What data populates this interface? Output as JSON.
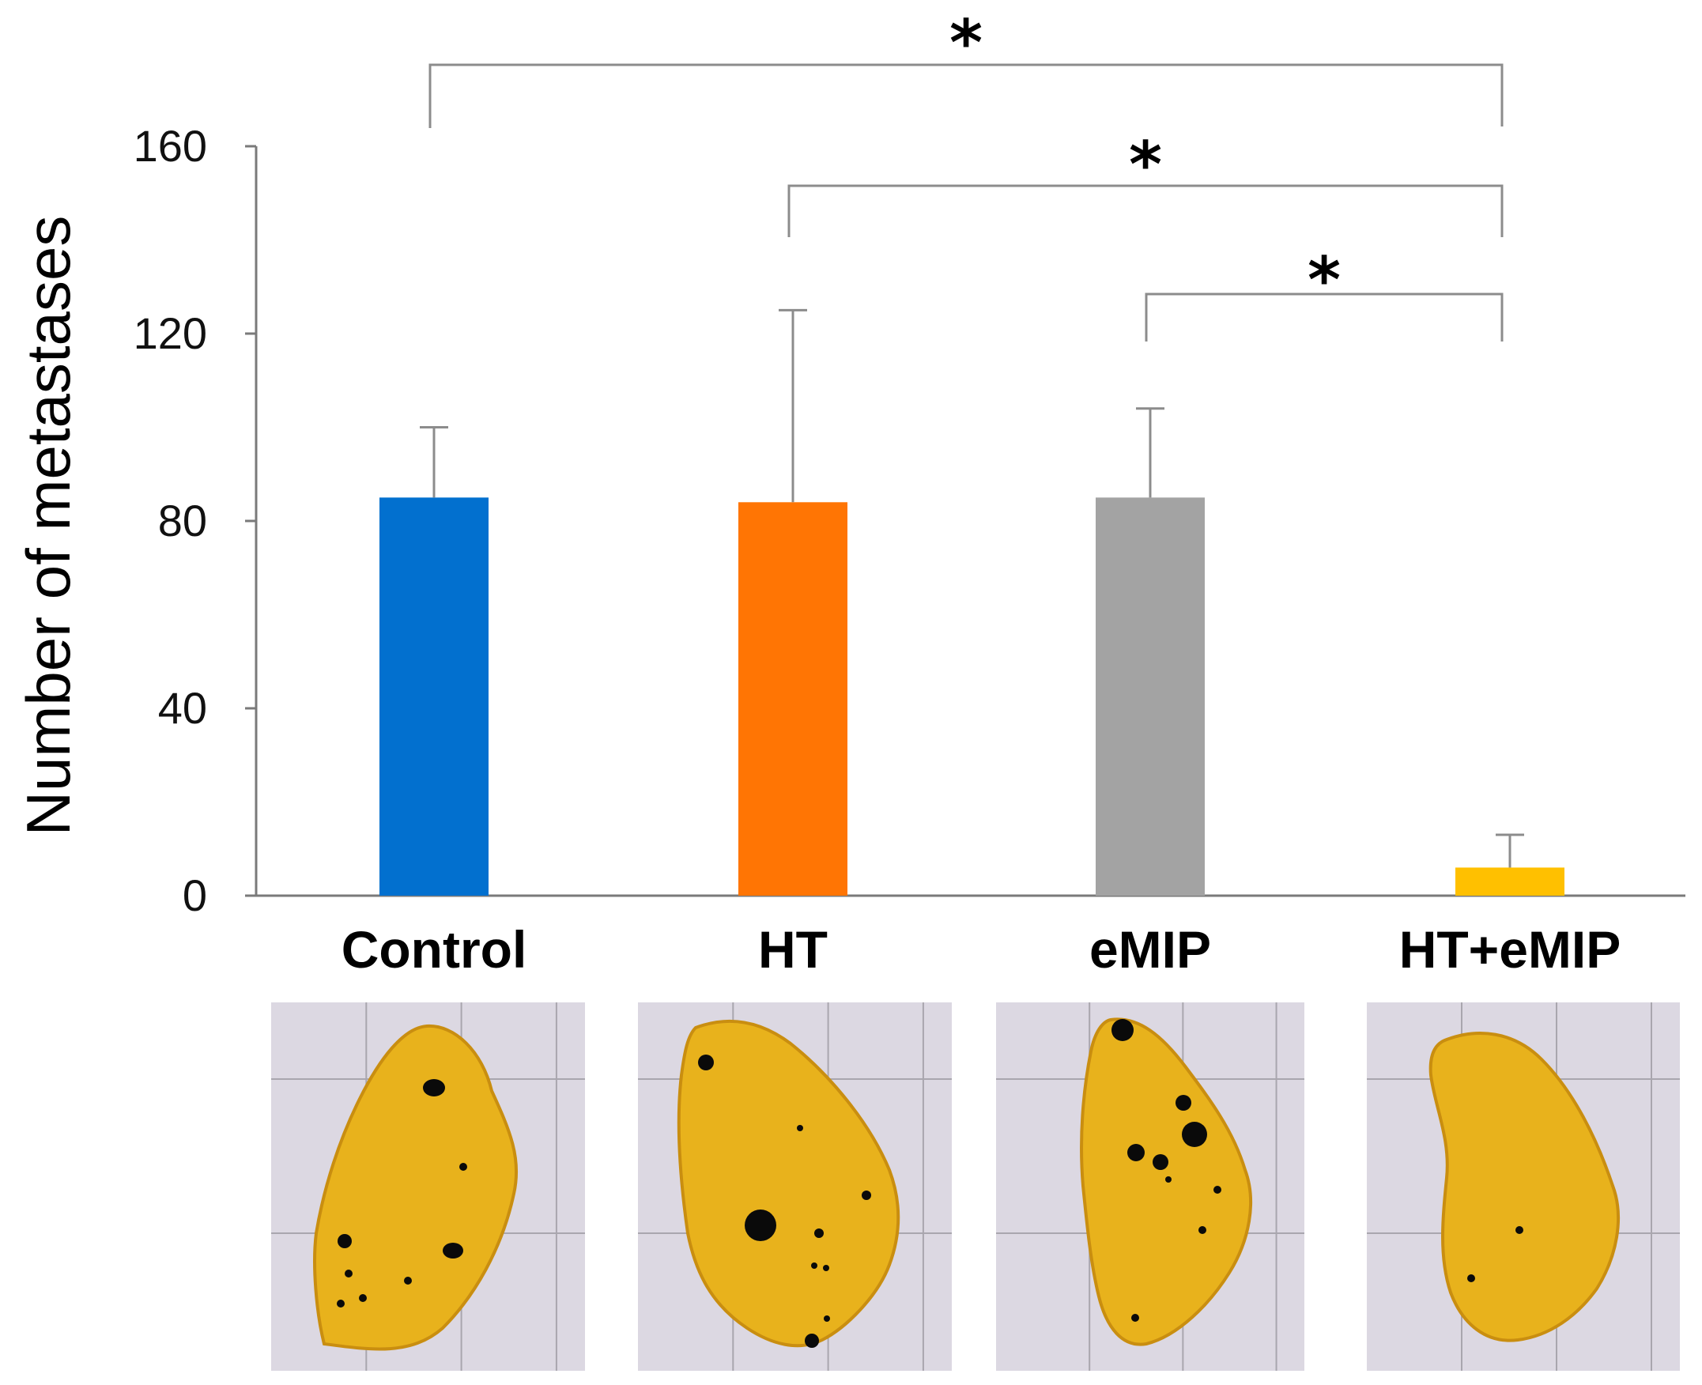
{
  "chart_data": {
    "type": "bar",
    "title": "",
    "xlabel": "",
    "ylabel": "Number of metastases",
    "ylim": [
      0,
      160
    ],
    "yticks": [
      "0",
      "40",
      "80",
      "120",
      "160"
    ],
    "categories": [
      "Control",
      "HT",
      "eMIP",
      "HT+eMIP"
    ],
    "values": [
      85,
      84,
      85,
      6
    ],
    "errors": [
      15,
      41,
      19,
      7
    ],
    "colors": [
      "#0270cf",
      "#ff7504",
      "#a3a3a3",
      "#ffc000"
    ],
    "grid": false,
    "legend": "none",
    "significance": [
      {
        "from": "Control",
        "to": "HT+eMIP",
        "label": "*"
      },
      {
        "from": "HT",
        "to": "HT+eMIP",
        "label": "*"
      },
      {
        "from": "eMIP",
        "to": "HT+eMIP",
        "label": "*"
      }
    ]
  },
  "photos": [
    {
      "group": "Control",
      "nodules": 9
    },
    {
      "group": "HT",
      "nodules": 9
    },
    {
      "group": "eMIP",
      "nodules": 10
    },
    {
      "group": "HT+eMIP",
      "nodules": 2
    }
  ],
  "colors": {
    "liver": "#e8b21c",
    "liver_edge": "#c98e10",
    "background_paper": "#dcd8e2",
    "grid_lines": "#a9a6ae",
    "nodule": "#0a0a0a"
  }
}
